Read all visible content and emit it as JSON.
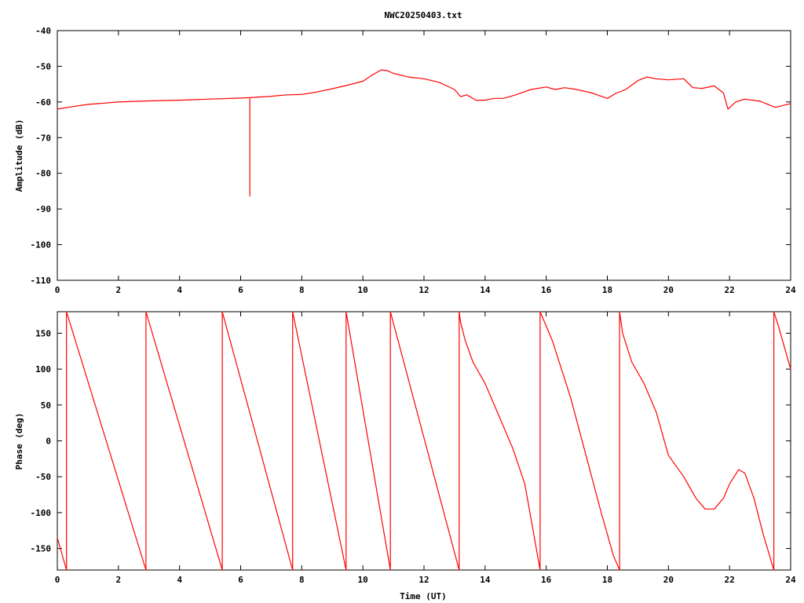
{
  "chart_data": [
    {
      "type": "line",
      "title": "NWC20250403.txt",
      "xlabel": "",
      "ylabel": "Amplitude (dB)",
      "xlim": [
        0,
        24
      ],
      "ylim": [
        -110,
        -40
      ],
      "x_ticks": [
        0,
        2,
        4,
        6,
        8,
        10,
        12,
        14,
        16,
        18,
        20,
        22,
        24
      ],
      "y_ticks": [
        -110,
        -100,
        -90,
        -80,
        -70,
        -60,
        -50,
        -40
      ],
      "grid": false,
      "color": "#ff0000",
      "series": [
        {
          "x": [
            0,
            0.5,
            1,
            2,
            3,
            4,
            5,
            6,
            6.3,
            7,
            7.5,
            8,
            8.5,
            9,
            9.5,
            10,
            10.3,
            10.6,
            10.8,
            11,
            11.5,
            12,
            12.5,
            13,
            13.2,
            13.4,
            13.7,
            14,
            14.3,
            14.6,
            15,
            15.5,
            16,
            16.3,
            16.6,
            17,
            17.5,
            18,
            18.3,
            18.6,
            19,
            19.3,
            19.6,
            20,
            20.5,
            20.8,
            21.1,
            21.5,
            21.8,
            21.95,
            22.2,
            22.5,
            23,
            23.5,
            24
          ],
          "values": [
            -62,
            -61.3,
            -60.7,
            -60,
            -59.7,
            -59.5,
            -59.2,
            -58.9,
            -58.8,
            -58.4,
            -58.0,
            -57.9,
            -57.2,
            -56.3,
            -55.3,
            -54.2,
            -52.5,
            -51.0,
            -51.2,
            -52.0,
            -53.0,
            -53.5,
            -54.5,
            -56.5,
            -58.5,
            -58.0,
            -59.5,
            -59.5,
            -59.0,
            -59.0,
            -58.0,
            -56.5,
            -55.8,
            -56.5,
            -56.0,
            -56.5,
            -57.5,
            -59.0,
            -57.5,
            -56.5,
            -54.0,
            -53.0,
            -53.5,
            -53.8,
            -53.5,
            -56.0,
            -56.2,
            -55.5,
            -57.5,
            -62.0,
            -60.0,
            -59.2,
            -59.8,
            -61.5,
            -60.5
          ]
        }
      ],
      "annotations": [
        {
          "x": 6.3,
          "y_from": -59,
          "y_to": -86.5
        }
      ]
    },
    {
      "type": "line",
      "title": "",
      "xlabel": "Time (UT)",
      "ylabel": "Phase (deg)",
      "xlim": [
        0,
        24
      ],
      "ylim": [
        -180,
        180
      ],
      "x_ticks": [
        0,
        2,
        4,
        6,
        8,
        10,
        12,
        14,
        16,
        18,
        20,
        22,
        24
      ],
      "y_ticks": [
        -150,
        -100,
        -50,
        0,
        50,
        100,
        150
      ],
      "grid": false,
      "color": "#ff0000",
      "series": [
        {
          "x": [
            0,
            0.3,
            0.3,
            2.9,
            2.9,
            5.4,
            5.4,
            7.7,
            7.7,
            9.45,
            9.45,
            10.9,
            10.9,
            13.15,
            13.15,
            13.2,
            13.35,
            13.6,
            14.0,
            14.4,
            14.9,
            15.3,
            15.8,
            15.8,
            16.2,
            16.8,
            17.3,
            17.8,
            18.2,
            18.4,
            18.4,
            18.5,
            18.8,
            19.2,
            19.6,
            20.0,
            20.5,
            20.9,
            21.2,
            21.5,
            21.8,
            22.0,
            22.3,
            22.5,
            22.8,
            23.1,
            23.45,
            23.45,
            23.6,
            24
          ],
          "values": [
            -135,
            -180,
            180,
            -180,
            180,
            -180,
            180,
            -180,
            180,
            -180,
            180,
            -180,
            180,
            -180,
            180,
            165,
            140,
            110,
            80,
            40,
            -10,
            -60,
            -180,
            180,
            140,
            60,
            -20,
            -100,
            -160,
            -180,
            180,
            150,
            110,
            80,
            40,
            -20,
            -50,
            -80,
            -95,
            -95,
            -80,
            -60,
            -40,
            -45,
            -80,
            -130,
            -180,
            180,
            160,
            100
          ]
        }
      ]
    }
  ]
}
